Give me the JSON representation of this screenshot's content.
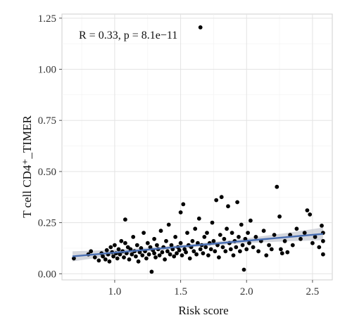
{
  "chart_data": {
    "type": "scatter",
    "title": "",
    "xlabel": "Risk score",
    "ylabel": "T cell CD4⁺_TIMER",
    "annotation": "R = 0.33, p = 8.1e−11",
    "xlim": [
      0.6,
      2.65
    ],
    "ylim": [
      -0.03,
      1.27
    ],
    "x_ticks": [
      1.0,
      1.5,
      2.0,
      2.5
    ],
    "x_tick_labels": [
      "1.0",
      "1.5",
      "2.0",
      "2.5"
    ],
    "y_ticks": [
      0.0,
      0.25,
      0.5,
      0.75,
      1.0,
      1.25
    ],
    "y_tick_labels": [
      "0.00",
      "0.25",
      "0.50",
      "0.75",
      "1.00",
      "1.25"
    ],
    "grid": true,
    "regression": {
      "x": [
        0.68,
        2.58
      ],
      "y": [
        0.085,
        0.195
      ],
      "color": "#4a6fb3",
      "band_color": "#c7cad1"
    },
    "point_color": "#000000",
    "points": [
      [
        0.69,
        0.075
      ],
      [
        0.8,
        0.095
      ],
      [
        0.82,
        0.11
      ],
      [
        0.85,
        0.08
      ],
      [
        0.88,
        0.065
      ],
      [
        0.9,
        0.1
      ],
      [
        0.91,
        0.085
      ],
      [
        0.93,
        0.07
      ],
      [
        0.94,
        0.115
      ],
      [
        0.95,
        0.095
      ],
      [
        0.96,
        0.06
      ],
      [
        0.97,
        0.13
      ],
      [
        0.98,
        0.105
      ],
      [
        0.99,
        0.085
      ],
      [
        1.0,
        0.14
      ],
      [
        1.01,
        0.1
      ],
      [
        1.02,
        0.075
      ],
      [
        1.03,
        0.12
      ],
      [
        1.04,
        0.095
      ],
      [
        1.05,
        0.16
      ],
      [
        1.06,
        0.11
      ],
      [
        1.07,
        0.08
      ],
      [
        1.08,
        0.15
      ],
      [
        1.08,
        0.265
      ],
      [
        1.09,
        0.1
      ],
      [
        1.1,
        0.13
      ],
      [
        1.11,
        0.07
      ],
      [
        1.12,
        0.12
      ],
      [
        1.13,
        0.095
      ],
      [
        1.14,
        0.18
      ],
      [
        1.15,
        0.11
      ],
      [
        1.16,
        0.085
      ],
      [
        1.17,
        0.14
      ],
      [
        1.18,
        0.06
      ],
      [
        1.19,
        0.105
      ],
      [
        1.2,
        0.125
      ],
      [
        1.21,
        0.09
      ],
      [
        1.22,
        0.2
      ],
      [
        1.23,
        0.11
      ],
      [
        1.24,
        0.075
      ],
      [
        1.25,
        0.15
      ],
      [
        1.26,
        0.095
      ],
      [
        1.27,
        0.13
      ],
      [
        1.28,
        0.01
      ],
      [
        1.29,
        0.115
      ],
      [
        1.3,
        0.17
      ],
      [
        1.3,
        0.1
      ],
      [
        1.31,
        0.08
      ],
      [
        1.32,
        0.14
      ],
      [
        1.33,
        0.12
      ],
      [
        1.34,
        0.09
      ],
      [
        1.35,
        0.21
      ],
      [
        1.36,
        0.105
      ],
      [
        1.37,
        0.13
      ],
      [
        1.38,
        0.07
      ],
      [
        1.39,
        0.16
      ],
      [
        1.4,
        0.11
      ],
      [
        1.41,
        0.24
      ],
      [
        1.42,
        0.095
      ],
      [
        1.43,
        0.14
      ],
      [
        1.44,
        0.12
      ],
      [
        1.45,
        0.085
      ],
      [
        1.46,
        0.18
      ],
      [
        1.47,
        0.1
      ],
      [
        1.48,
        0.13
      ],
      [
        1.49,
        0.115
      ],
      [
        1.5,
        0.3
      ],
      [
        1.5,
        0.15
      ],
      [
        1.51,
        0.09
      ],
      [
        1.52,
        0.34
      ],
      [
        1.53,
        0.12
      ],
      [
        1.54,
        0.105
      ],
      [
        1.55,
        0.2
      ],
      [
        1.56,
        0.14
      ],
      [
        1.57,
        0.075
      ],
      [
        1.58,
        0.13
      ],
      [
        1.59,
        0.16
      ],
      [
        1.6,
        0.11
      ],
      [
        1.61,
        0.22
      ],
      [
        1.62,
        0.095
      ],
      [
        1.63,
        0.15
      ],
      [
        1.64,
        0.27
      ],
      [
        1.65,
        1.205
      ],
      [
        1.65,
        0.12
      ],
      [
        1.66,
        0.14
      ],
      [
        1.67,
        0.1
      ],
      [
        1.68,
        0.18
      ],
      [
        1.69,
        0.13
      ],
      [
        1.7,
        0.2
      ],
      [
        1.71,
        0.09
      ],
      [
        1.72,
        0.15
      ],
      [
        1.73,
        0.12
      ],
      [
        1.74,
        0.25
      ],
      [
        1.75,
        0.16
      ],
      [
        1.76,
        0.11
      ],
      [
        1.77,
        0.36
      ],
      [
        1.78,
        0.14
      ],
      [
        1.79,
        0.08
      ],
      [
        1.8,
        0.19
      ],
      [
        1.81,
        0.375
      ],
      [
        1.82,
        0.13
      ],
      [
        1.83,
        0.17
      ],
      [
        1.84,
        0.11
      ],
      [
        1.85,
        0.22
      ],
      [
        1.86,
        0.33
      ],
      [
        1.87,
        0.15
      ],
      [
        1.88,
        0.12
      ],
      [
        1.89,
        0.2
      ],
      [
        1.9,
        0.09
      ],
      [
        1.91,
        0.16
      ],
      [
        1.92,
        0.13
      ],
      [
        1.93,
        0.35
      ],
      [
        1.94,
        0.18
      ],
      [
        1.95,
        0.11
      ],
      [
        1.96,
        0.24
      ],
      [
        1.97,
        0.14
      ],
      [
        1.98,
        0.02
      ],
      [
        1.99,
        0.17
      ],
      [
        2.0,
        0.12
      ],
      [
        2.01,
        0.2
      ],
      [
        2.02,
        0.15
      ],
      [
        2.03,
        0.26
      ],
      [
        2.05,
        0.13
      ],
      [
        2.07,
        0.18
      ],
      [
        2.09,
        0.11
      ],
      [
        2.11,
        0.16
      ],
      [
        2.13,
        0.21
      ],
      [
        2.15,
        0.09
      ],
      [
        2.17,
        0.14
      ],
      [
        2.19,
        0.12
      ],
      [
        2.21,
        0.19
      ],
      [
        2.23,
        0.425
      ],
      [
        2.25,
        0.28
      ],
      [
        2.26,
        0.12
      ],
      [
        2.27,
        0.1
      ],
      [
        2.29,
        0.16
      ],
      [
        2.31,
        0.105
      ],
      [
        2.33,
        0.19
      ],
      [
        2.35,
        0.14
      ],
      [
        2.38,
        0.22
      ],
      [
        2.41,
        0.17
      ],
      [
        2.44,
        0.2
      ],
      [
        2.46,
        0.31
      ],
      [
        2.48,
        0.29
      ],
      [
        2.5,
        0.15
      ],
      [
        2.52,
        0.18
      ],
      [
        2.55,
        0.13
      ],
      [
        2.57,
        0.235
      ],
      [
        2.58,
        0.16
      ],
      [
        2.58,
        0.095
      ],
      [
        2.58,
        0.2
      ]
    ]
  }
}
